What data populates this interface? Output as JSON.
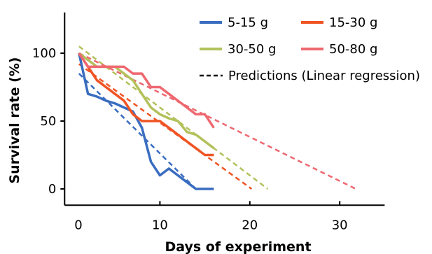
{
  "chart_data": {
    "type": "line",
    "xlabel": "Days of experiment",
    "ylabel": "Survival rate (%)",
    "xlim": [
      0,
      35
    ],
    "ylim": [
      0,
      130
    ],
    "x_ticks": [
      "0",
      "10",
      "20",
      "30"
    ],
    "y_ticks": [
      "0",
      "50",
      "100"
    ],
    "x_tick_values": [
      0,
      10,
      20,
      30
    ],
    "y_tick_values": [
      0,
      50,
      100
    ],
    "legend_position": "top-right",
    "series": [
      {
        "name": "5-15 g",
        "color": "#3a6dc0",
        "x": [
          1,
          2,
          3,
          4,
          5,
          6,
          7,
          8,
          9,
          10,
          11,
          12,
          13,
          14,
          15,
          16
        ],
        "y": [
          100,
          70,
          68,
          65,
          63,
          60,
          57,
          45,
          20,
          10,
          15,
          10,
          5,
          0,
          0,
          0
        ]
      },
      {
        "name": "15-30 g",
        "color": "#ef5424",
        "x": [
          1,
          2,
          3,
          4,
          5,
          6,
          7,
          8,
          9,
          10,
          11,
          12,
          13,
          14,
          15,
          16
        ],
        "y": [
          100,
          90,
          80,
          75,
          70,
          65,
          55,
          50,
          50,
          50,
          45,
          40,
          35,
          30,
          25,
          25
        ]
      },
      {
        "name": "30-50 g",
        "color": "#b3c15b",
        "x": [
          1,
          2,
          3,
          4,
          5,
          6,
          7,
          8,
          9,
          10,
          11,
          12,
          13,
          14,
          15,
          16
        ],
        "y": [
          100,
          95,
          90,
          90,
          90,
          85,
          80,
          70,
          60,
          55,
          52,
          50,
          42,
          40,
          35,
          30
        ]
      },
      {
        "name": "50-80 g",
        "color": "#ee6870",
        "x": [
          1,
          2,
          3,
          4,
          5,
          6,
          7,
          8,
          9,
          10,
          11,
          12,
          13,
          14,
          15,
          16
        ],
        "y": [
          100,
          90,
          90,
          90,
          90,
          90,
          85,
          85,
          75,
          75,
          70,
          65,
          60,
          55,
          55,
          45
        ]
      }
    ],
    "predictions_label": "Predictions (Linear regression)",
    "predictions": [
      {
        "series": "5-15 g",
        "color": "#3a6dc0",
        "x": [
          1,
          14
        ],
        "y": [
          85,
          0
        ]
      },
      {
        "series": "15-30 g",
        "color": "#ef5424",
        "x": [
          1,
          20.2
        ],
        "y": [
          92,
          0
        ]
      },
      {
        "series": "30-50 g",
        "color": "#b3c15b",
        "x": [
          1,
          22
        ],
        "y": [
          105,
          0
        ]
      },
      {
        "series": "50-80 g",
        "color": "#ee6870",
        "x": [
          1,
          31.8
        ],
        "y": [
          100,
          0
        ]
      }
    ]
  }
}
